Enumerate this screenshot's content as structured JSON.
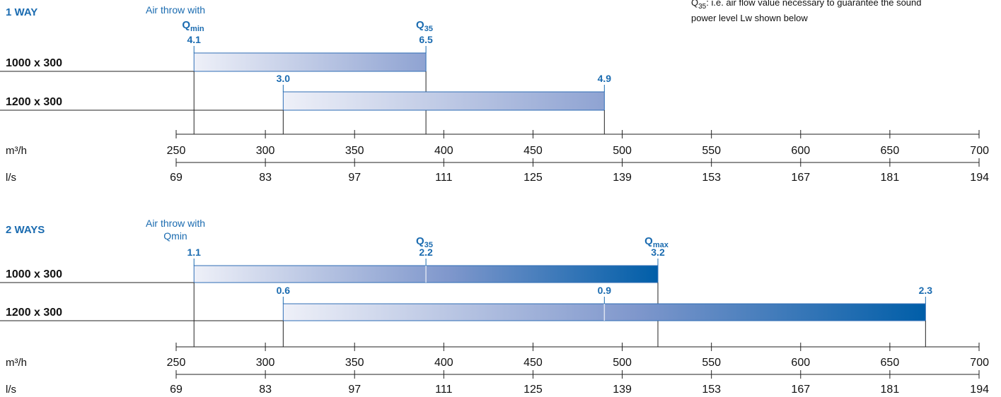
{
  "note": {
    "q35_sub": "35",
    "line1": ": i.e. air flow value necessary to guarantee the sound",
    "line2": "power level Lw shown below"
  },
  "chart_data": [
    {
      "type": "bar",
      "section_title": "1 WAY",
      "throw_label": "Air throw with",
      "q_labels": {
        "min": "min",
        "q35": "35",
        "max": ""
      },
      "rows": [
        {
          "label": "1000 x 300",
          "start": 260,
          "end": 390,
          "markers": [
            {
              "x": 260,
              "value": "4.1"
            },
            {
              "x": 390,
              "value": "6.5"
            }
          ]
        },
        {
          "label": "1200 x 300",
          "start": 310,
          "end": 490,
          "markers": [
            {
              "x": 310,
              "value": "3.0"
            },
            {
              "x": 490,
              "value": "4.9"
            }
          ]
        }
      ],
      "units": {
        "primary": "m³/h",
        "secondary": "l/s"
      },
      "ticks": {
        "primary": [
          "250",
          "300",
          "350",
          "400",
          "450",
          "500",
          "550",
          "600",
          "650",
          "700"
        ],
        "secondary": [
          "69",
          "83",
          "97",
          "111",
          "125",
          "139",
          "153",
          "167",
          "181",
          "194"
        ]
      },
      "xlim": [
        250,
        700
      ],
      "colors": {
        "light": "#eef0f8",
        "mid": "#8fa3d2",
        "dark": "#005ea8"
      }
    },
    {
      "type": "bar",
      "section_title": "2 WAYS",
      "throw_label": "Air throw with",
      "throw_label2": "Qmin",
      "q_labels": {
        "min": "",
        "q35": "35",
        "max": "max"
      },
      "rows": [
        {
          "label": "1000 x 300",
          "start": 260,
          "end": 520,
          "markers": [
            {
              "x": 260,
              "value": "1.1"
            },
            {
              "x": 390,
              "value": "2.2"
            },
            {
              "x": 520,
              "value": "3.2"
            }
          ]
        },
        {
          "label": "1200 x 300",
          "start": 310,
          "end": 670,
          "markers": [
            {
              "x": 310,
              "value": "0.6"
            },
            {
              "x": 490,
              "value": "0.9"
            },
            {
              "x": 670,
              "value": "2.3"
            }
          ]
        }
      ],
      "units": {
        "primary": "m³/h",
        "secondary": "l/s"
      },
      "ticks": {
        "primary": [
          "250",
          "300",
          "350",
          "400",
          "450",
          "500",
          "550",
          "600",
          "650",
          "700"
        ],
        "secondary": [
          "69",
          "83",
          "97",
          "111",
          "125",
          "139",
          "153",
          "167",
          "181",
          "194"
        ]
      },
      "xlim": [
        250,
        700
      ],
      "colors": {
        "light": "#eef0f8",
        "mid": "#8fa3d2",
        "dark": "#005ea8"
      }
    }
  ]
}
